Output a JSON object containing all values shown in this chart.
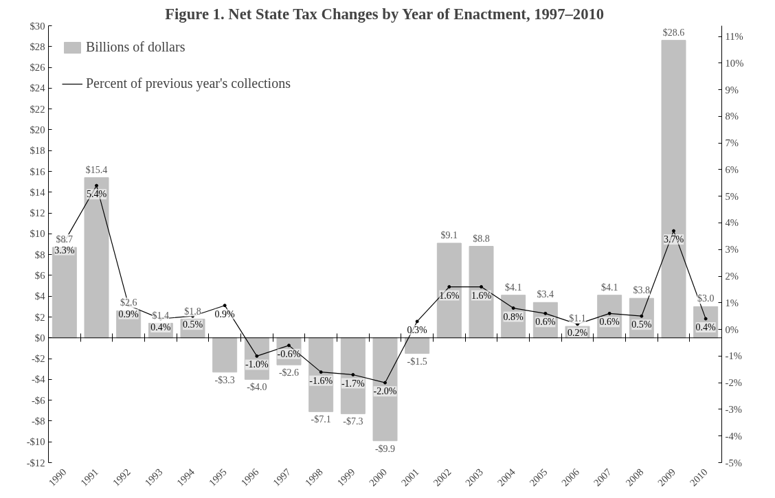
{
  "chart_data": {
    "type": "bar",
    "title": "Figure 1. Net State Tax Changes by Year of Enactment, 1997–2010",
    "categories": [
      "1990",
      "1991",
      "1992",
      "1993",
      "1994",
      "1995",
      "1996",
      "1997",
      "1998",
      "1999",
      "2000",
      "2001",
      "2002",
      "2003",
      "2004",
      "2005",
      "2006",
      "2007",
      "2008",
      "2009",
      "2010"
    ],
    "series": [
      {
        "name": "Billions of dollars",
        "color": "#c0c0c0",
        "values": [
          8.7,
          15.4,
          2.6,
          1.4,
          1.8,
          -3.3,
          -4.0,
          -2.6,
          -7.1,
          -7.3,
          -9.9,
          -1.5,
          9.1,
          8.8,
          4.1,
          3.4,
          1.1,
          4.1,
          3.8,
          28.6,
          3.0
        ],
        "value_labels": [
          "$8.7",
          "$15.4",
          "$2.6",
          "$1.4",
          "$1.8",
          "-$3.3",
          "-$4.0",
          "-$2.6",
          "-$7.1",
          "-$7.3",
          "-$9.9",
          "-$1.5",
          "$9.1",
          "$8.8",
          "$4.1",
          "$3.4",
          "$1.1",
          "$4.1",
          "$3.8",
          "$28.6",
          "$3.0"
        ]
      },
      {
        "name": "Percent of previous year's collections",
        "type": "line",
        "axis": "y2",
        "color": "#000000",
        "marker": "circle",
        "values": [
          3.3,
          5.4,
          0.9,
          0.4,
          0.5,
          0.9,
          -1.0,
          -0.6,
          -1.6,
          -1.7,
          -2.0,
          0.3,
          1.6,
          1.6,
          0.8,
          0.6,
          0.2,
          0.6,
          0.5,
          3.7,
          0.4
        ],
        "value_labels": [
          "3.3%",
          "5.4%",
          "0.9%",
          "0.4%",
          "0.5%",
          "0.9%",
          "-1.0%",
          "-0.6%",
          "-1.6%",
          "-1.7%",
          "-2.0%",
          "0.3%",
          "1.6%",
          "1.6%",
          "0.8%",
          "0.6%",
          "0.2%",
          "0.6%",
          "0.5%",
          "3.7%",
          "0.4%"
        ]
      }
    ],
    "ylim": [
      -12,
      30
    ],
    "yticks": [
      {
        "value": -12,
        "label": "-$12"
      },
      {
        "value": -10,
        "label": "-$10"
      },
      {
        "value": -8,
        "label": "-$8"
      },
      {
        "value": -6,
        "label": "-$6"
      },
      {
        "value": -4,
        "label": "-$4"
      },
      {
        "value": -2,
        "label": "-$2"
      },
      {
        "value": 0,
        "label": "$0"
      },
      {
        "value": 2,
        "label": "$2"
      },
      {
        "value": 4,
        "label": "$4"
      },
      {
        "value": 6,
        "label": "$6"
      },
      {
        "value": 8,
        "label": "$8"
      },
      {
        "value": 10,
        "label": "$10"
      },
      {
        "value": 12,
        "label": "$12"
      },
      {
        "value": 14,
        "label": "$14"
      },
      {
        "value": 16,
        "label": "$16"
      },
      {
        "value": 18,
        "label": "$18"
      },
      {
        "value": 20,
        "label": "$20"
      },
      {
        "value": 22,
        "label": "$22"
      },
      {
        "value": 24,
        "label": "$24"
      },
      {
        "value": 26,
        "label": "$26"
      },
      {
        "value": 28,
        "label": "$28"
      },
      {
        "value": 30,
        "label": "$30"
      }
    ],
    "y2lim": [
      -5,
      11.4
    ],
    "y2ticks": [
      {
        "value": -5,
        "label": "-5%"
      },
      {
        "value": -4,
        "label": "-4%"
      },
      {
        "value": -3,
        "label": "-3%"
      },
      {
        "value": -2,
        "label": "-2%"
      },
      {
        "value": -1,
        "label": "-1%"
      },
      {
        "value": 0,
        "label": "0%"
      },
      {
        "value": 1,
        "label": "1%"
      },
      {
        "value": 2,
        "label": "2%"
      },
      {
        "value": 3,
        "label": "3%"
      },
      {
        "value": 4,
        "label": "4%"
      },
      {
        "value": 5,
        "label": "5%"
      },
      {
        "value": 6,
        "label": "6%"
      },
      {
        "value": 7,
        "label": "7%"
      },
      {
        "value": 8,
        "label": "8%"
      },
      {
        "value": 9,
        "label": "9%"
      },
      {
        "value": 10,
        "label": "10%"
      },
      {
        "value": 11,
        "label": "11%"
      }
    ],
    "ref_lines": [
      {
        "axis": "y",
        "value": 0
      }
    ],
    "legend": "top left",
    "grid": false
  }
}
